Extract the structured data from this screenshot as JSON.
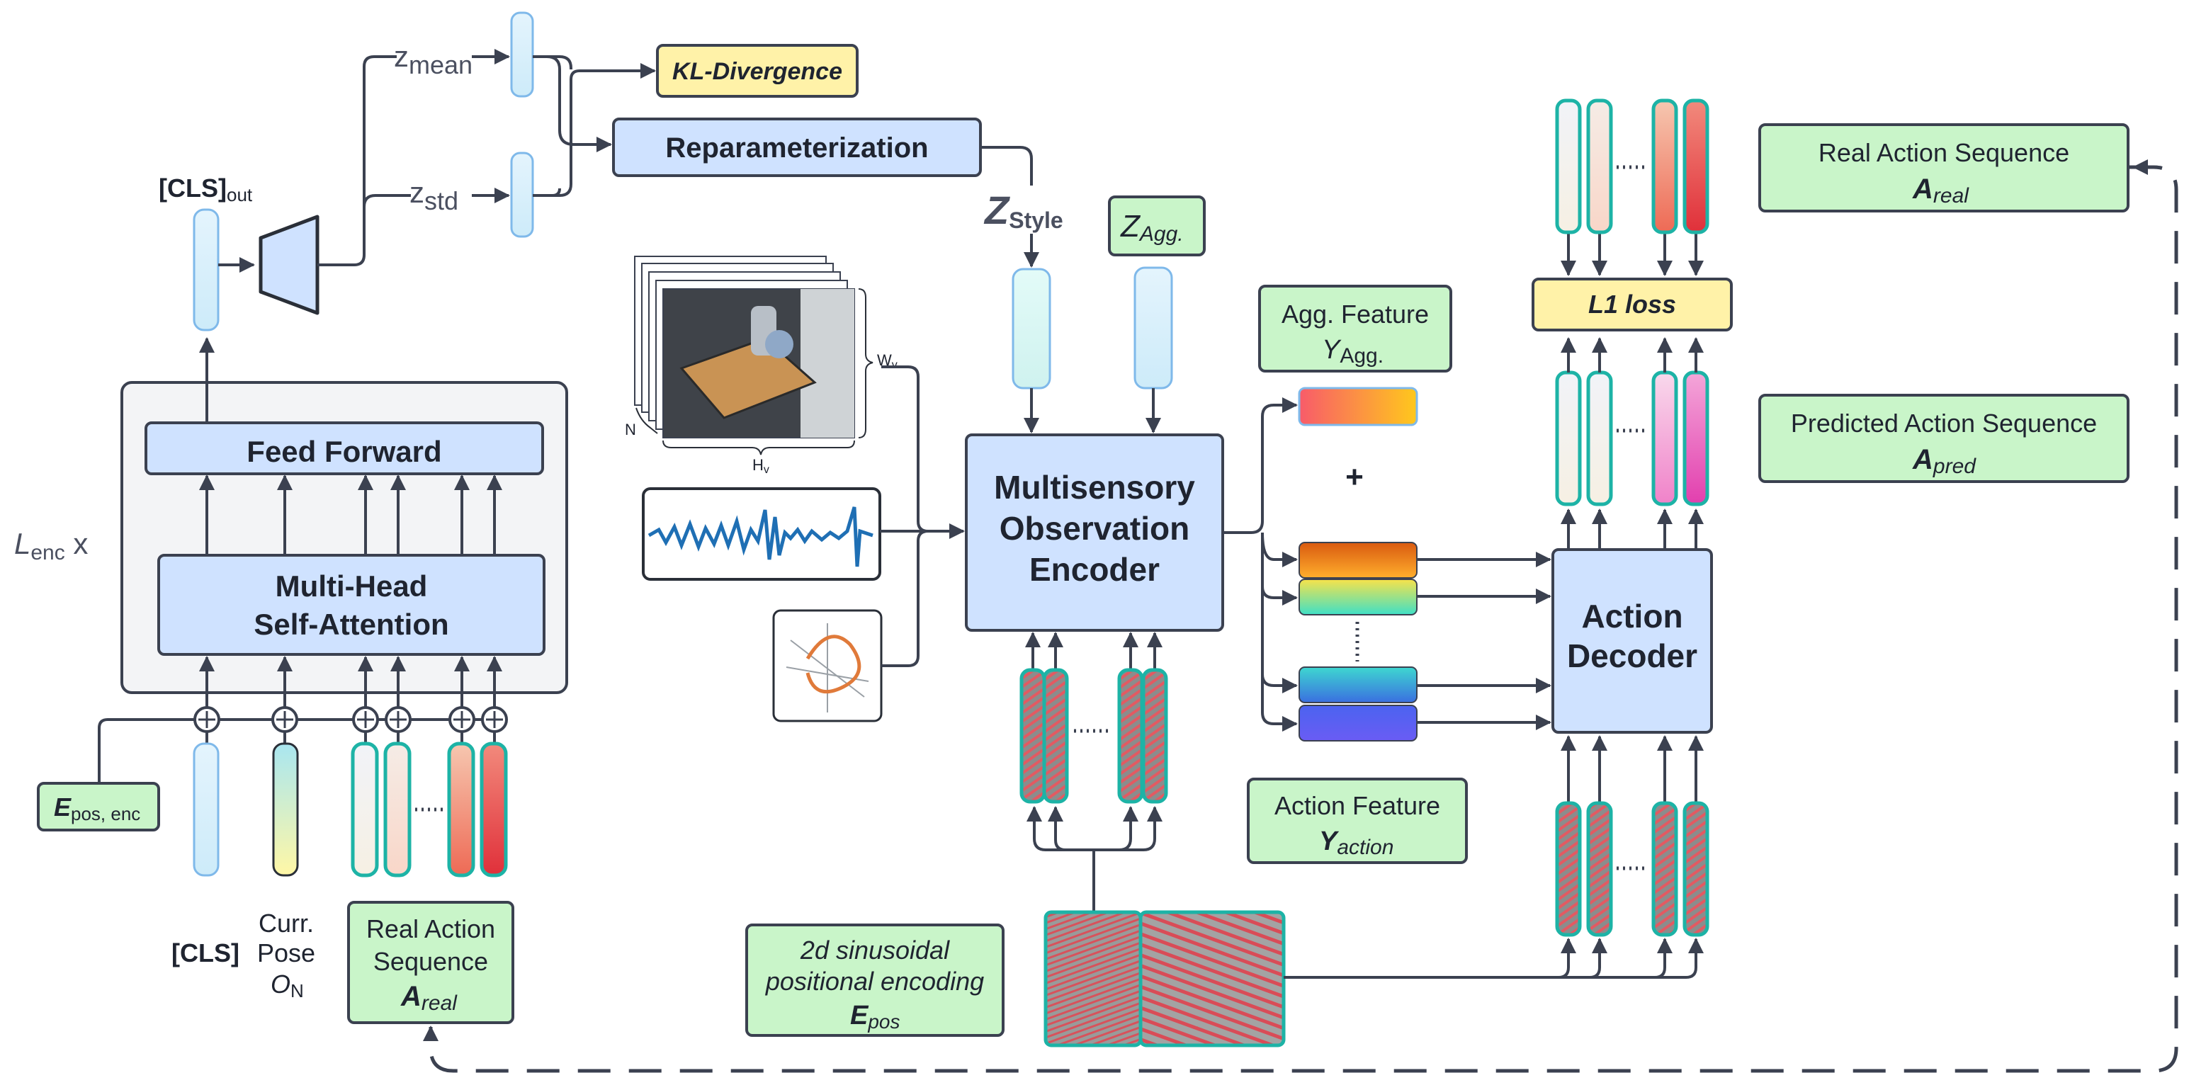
{
  "encoder": {
    "cls_out": "[CLS]",
    "cls_out_sub": "out",
    "z_mean": "z",
    "z_mean_sub": "mean",
    "z_std": "z",
    "z_std_sub": "std",
    "kl": "KL-Divergence",
    "reparam": "Reparameterization",
    "feed_forward": "Feed Forward",
    "mhsa_1": "Multi-Head",
    "mhsa_2": "Self-Attention",
    "layers_L": "L",
    "layers_sub": "enc",
    "layers_x": " x",
    "epos_enc_main": "E",
    "epos_enc_sub": "pos, enc",
    "cls_in": "[CLS]",
    "curr_1": "Curr.",
    "curr_2": "Pose",
    "curr_3_main": "O",
    "curr_3_sub": "N",
    "real_seq_1": "Real Action",
    "real_seq_2": "Sequence",
    "real_seq_3_main": "A",
    "real_seq_3_sub": "real"
  },
  "middle": {
    "z_style_main": "Z",
    "z_style_sub": "Style",
    "z_agg_main": "Z",
    "z_agg_sub": "Agg.",
    "image_w": "W",
    "image_w_sub": "v",
    "image_h": "H",
    "image_h_sub": "v",
    "image_n": "N",
    "observation_1": "Multisensory",
    "observation_2": "Observation",
    "observation_3": "Encoder",
    "pos_enc_1": "2d sinusoidal",
    "pos_enc_2": "positional encoding",
    "pos_enc_3_main": "E",
    "pos_enc_3_sub": "pos",
    "plus": "+",
    "agg_1": "Agg. Feature",
    "agg_2_main": "Y",
    "agg_2_sub": "Agg.",
    "act_1": "Action Feature",
    "act_2_main": "Y",
    "act_2_sub": "action"
  },
  "decoder": {
    "l1": "L1 loss",
    "action_decoder_1": "Action",
    "action_decoder_2": "Decoder",
    "real_1": "Real Action Sequence",
    "real_2_main": "A",
    "real_2_sub": "real",
    "pred_1": "Predicted Action Sequence",
    "pred_2_main": "A",
    "pred_2_sub": "pred"
  },
  "colors": {
    "line": "#3b4150",
    "blue_box": "#cfe2ff",
    "green_box": "#c9f5c9",
    "yellow_box": "#fff2a8",
    "teal_border": "#1db3a6",
    "token_blue": "#d9f2fb"
  }
}
